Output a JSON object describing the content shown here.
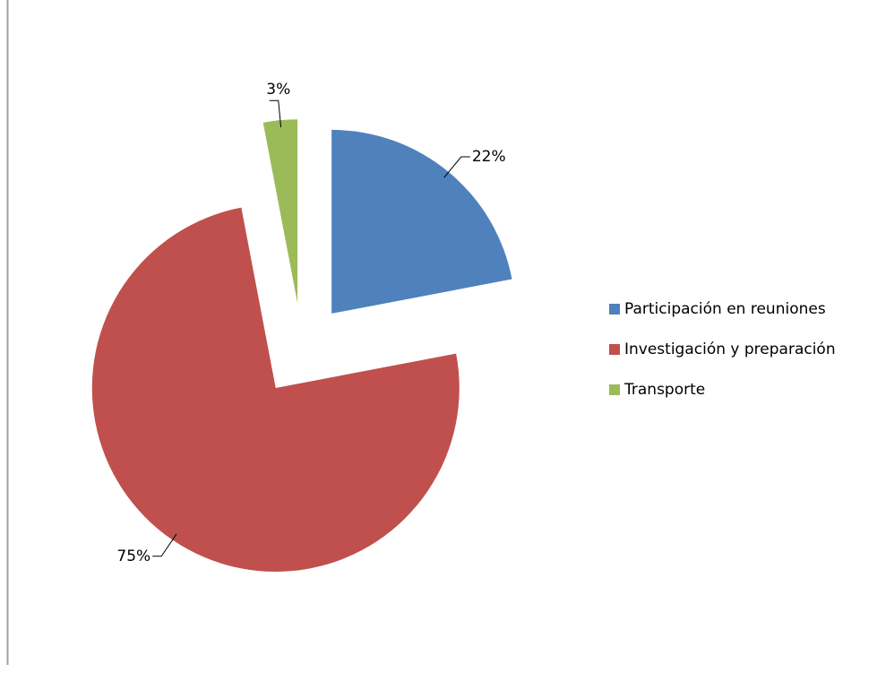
{
  "chart_data": {
    "type": "pie",
    "categories": [
      "Participación en reuniones",
      "Investigación y preparación",
      "Transporte"
    ],
    "values": [
      22,
      75,
      3
    ],
    "value_labels": [
      "22%",
      "75%",
      "3%"
    ],
    "colors": [
      "#4f81bd",
      "#c0504d",
      "#9bbb59"
    ],
    "legend": "right"
  }
}
